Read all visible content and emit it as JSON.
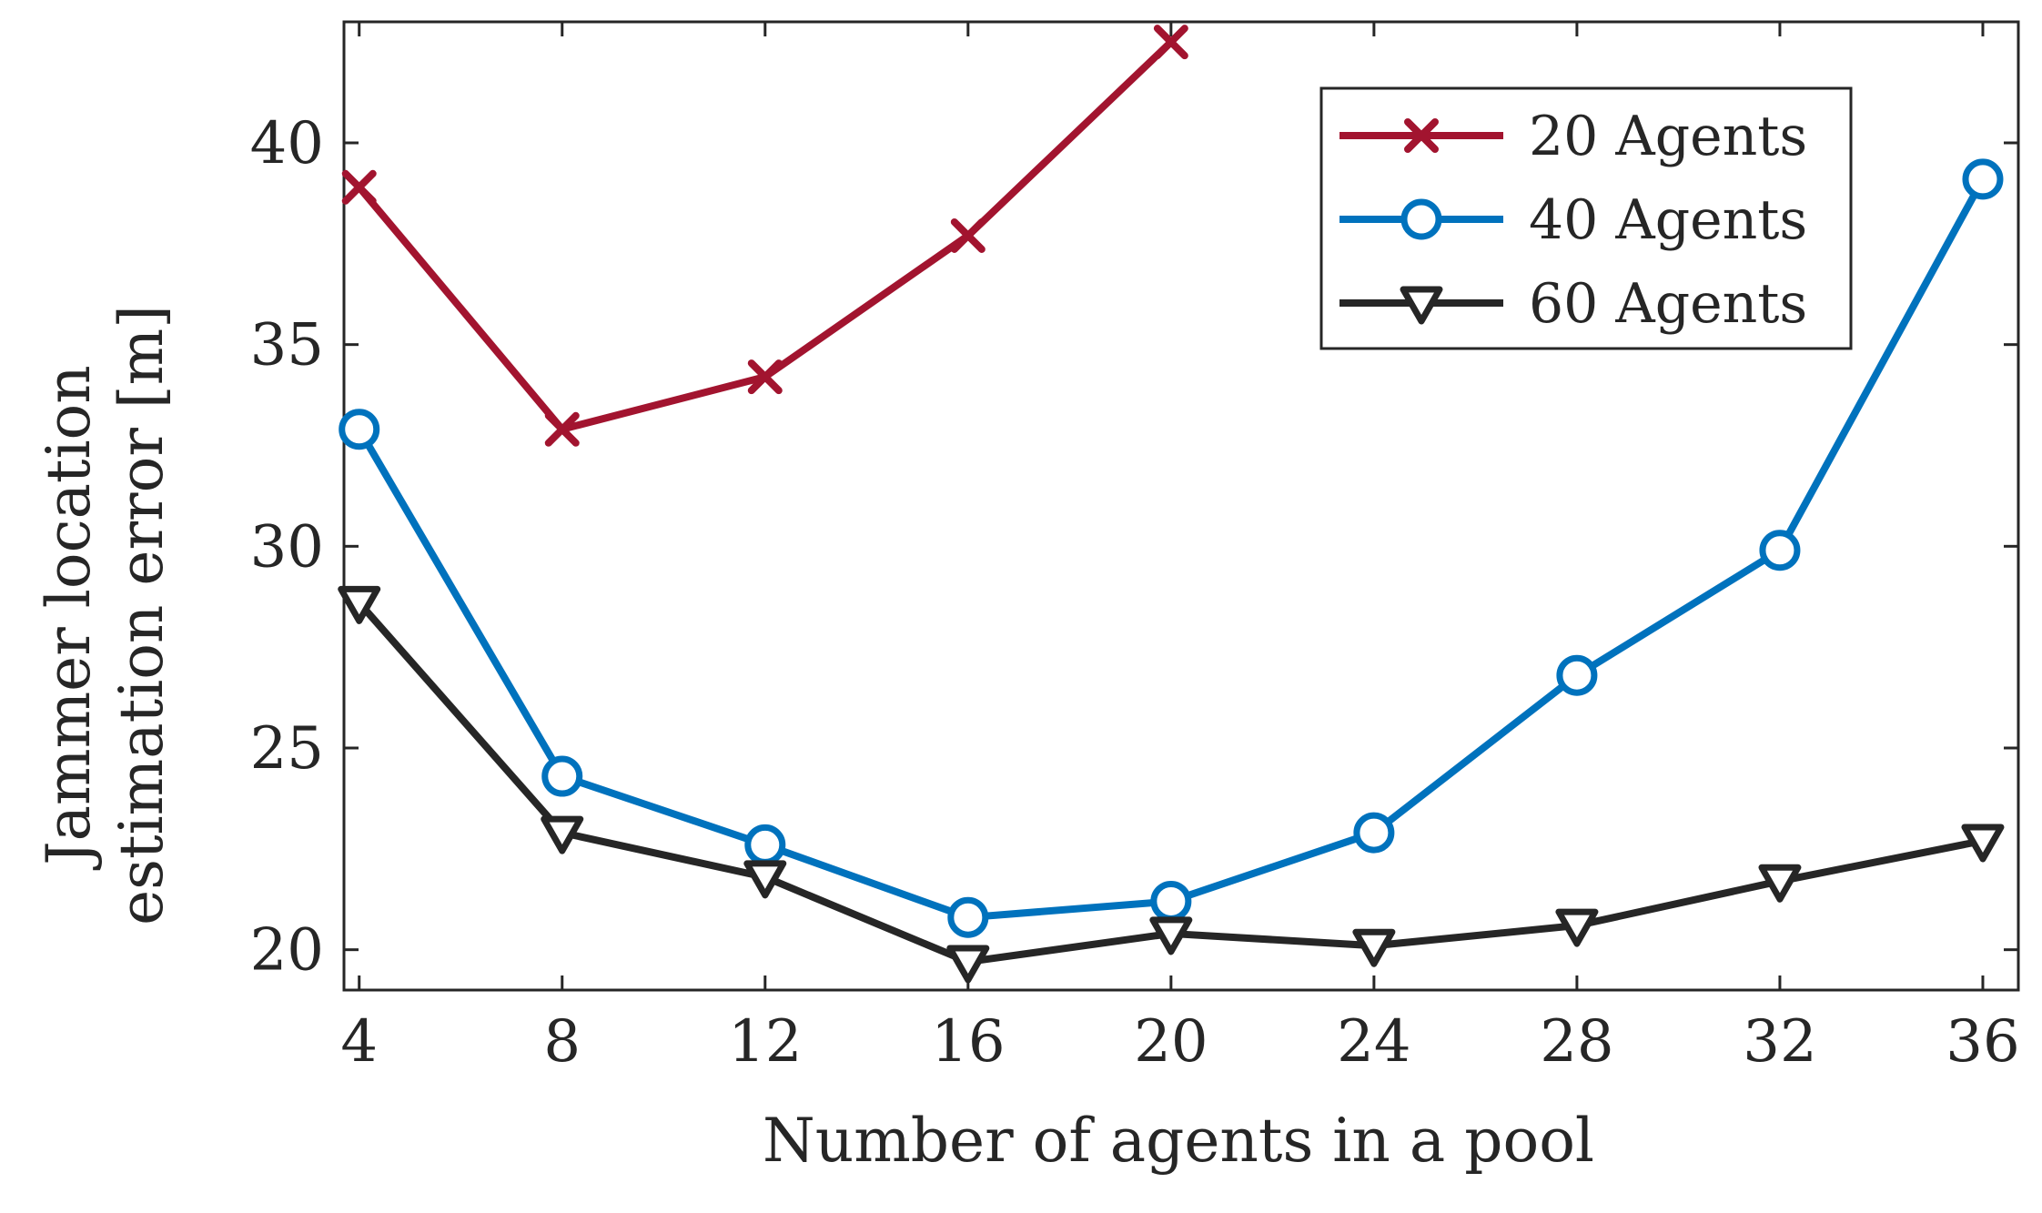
{
  "chart_data": {
    "type": "line",
    "title": "",
    "xlabel": "Number of agents in a pool",
    "ylabel_lines": [
      "Jammer location",
      "estimation error [m]"
    ],
    "x": [
      4,
      8,
      12,
      16,
      20,
      24,
      28,
      32,
      36
    ],
    "xticks": [
      4,
      8,
      12,
      16,
      20,
      24,
      28,
      32,
      36
    ],
    "yticks": [
      20,
      25,
      30,
      35,
      40
    ],
    "xlim": [
      3.7,
      36.7
    ],
    "ylim": [
      19,
      43
    ],
    "grid": false,
    "legend_position": "top-right",
    "series": [
      {
        "name": "20 Agents",
        "color": "#a2142f",
        "marker": "x",
        "values": [
          38.9,
          32.9,
          34.2,
          37.7,
          42.5,
          null,
          null,
          null,
          null
        ]
      },
      {
        "name": "40 Agents",
        "color": "#0072bd",
        "marker": "circle",
        "values": [
          32.9,
          24.3,
          22.6,
          20.8,
          21.2,
          22.9,
          26.8,
          29.9,
          39.1
        ]
      },
      {
        "name": "60 Agents",
        "color": "#262626",
        "marker": "triangle-down",
        "values": [
          28.6,
          22.9,
          21.8,
          19.7,
          20.4,
          20.1,
          20.6,
          21.7,
          22.7
        ]
      }
    ]
  }
}
